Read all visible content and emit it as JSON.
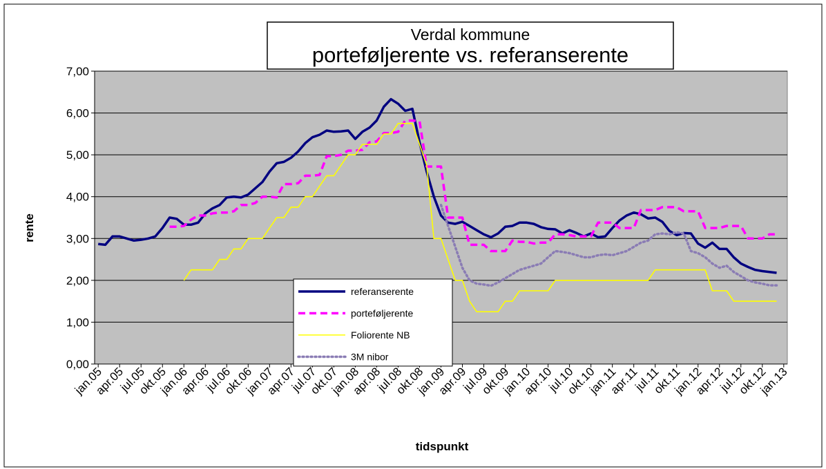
{
  "chart_data": {
    "type": "line",
    "title": "Verdal kommune",
    "subtitle": "porteføljerente vs. referanserente",
    "x_label": "tidspunkt",
    "y_label": "rente",
    "categories": [
      "jan.05",
      null,
      null,
      "apr.05",
      null,
      null,
      "jul.05",
      null,
      null,
      "okt.05",
      null,
      null,
      "jan.06",
      null,
      null,
      "apr.06",
      null,
      null,
      "jul.06",
      null,
      null,
      "okt.06",
      null,
      null,
      "jan.07",
      null,
      null,
      "apr.07",
      null,
      null,
      "jul.07",
      null,
      null,
      "okt.07",
      null,
      null,
      "jan.08",
      null,
      null,
      "apr.08",
      null,
      null,
      "jul.08",
      null,
      null,
      "okt.08",
      null,
      null,
      "jan.09",
      null,
      null,
      "apr.09",
      null,
      null,
      "jul.09",
      null,
      null,
      "okt.09",
      null,
      null,
      "jan.10",
      null,
      null,
      "apr.10",
      null,
      null,
      "jul.10",
      null,
      null,
      "okt.10",
      null,
      null,
      "jan.11",
      null,
      null,
      "apr.11",
      null,
      null,
      "jul.11",
      null,
      null,
      "okt.11",
      null,
      null,
      "jan.12",
      null,
      null,
      "apr.12",
      null,
      null,
      "jul.12",
      null,
      null,
      "okt.12",
      null,
      null,
      "jan.13"
    ],
    "ylim": [
      0,
      7
    ],
    "yticks": [
      {
        "value": 0,
        "label": "0,00"
      },
      {
        "value": 1,
        "label": "1,00"
      },
      {
        "value": 2,
        "label": "2,00"
      },
      {
        "value": 3,
        "label": "3,00"
      },
      {
        "value": 4,
        "label": "4,00"
      },
      {
        "value": 5,
        "label": "5,00"
      },
      {
        "value": 6,
        "label": "6,00"
      },
      {
        "value": 7,
        "label": "7,00"
      }
    ],
    "grid": true,
    "series": [
      {
        "name": "referanserente",
        "color": "#000080",
        "dash": "solid",
        "values": [
          2.87,
          2.85,
          3.05,
          3.05,
          3.0,
          2.95,
          2.97,
          3.0,
          3.05,
          3.25,
          3.5,
          3.47,
          3.33,
          3.33,
          3.38,
          3.6,
          3.72,
          3.8,
          3.98,
          4.0,
          3.98,
          4.05,
          4.2,
          4.35,
          4.6,
          4.8,
          4.83,
          4.93,
          5.08,
          5.28,
          5.42,
          5.48,
          5.58,
          5.55,
          5.56,
          5.58,
          5.38,
          5.55,
          5.65,
          5.82,
          6.15,
          6.33,
          6.22,
          6.05,
          6.1,
          5.3,
          4.6,
          4.0,
          3.55,
          3.38,
          3.35,
          3.4,
          3.3,
          3.2,
          3.1,
          3.03,
          3.12,
          3.28,
          3.3,
          3.38,
          3.38,
          3.35,
          3.27,
          3.23,
          3.22,
          3.12,
          3.2,
          3.13,
          3.05,
          3.12,
          3.03,
          3.05,
          3.25,
          3.43,
          3.55,
          3.62,
          3.58,
          3.48,
          3.5,
          3.4,
          3.18,
          3.08,
          3.13,
          3.12,
          2.88,
          2.78,
          2.9,
          2.75,
          2.75,
          2.55,
          2.4,
          2.32,
          2.25,
          2.22,
          2.2,
          2.18,
          null
        ]
      },
      {
        "name": "porteføljerente",
        "color": "#ff00ff",
        "dash": "dashed",
        "values": [
          null,
          null,
          null,
          null,
          null,
          null,
          null,
          null,
          null,
          null,
          3.28,
          3.28,
          3.3,
          3.45,
          3.55,
          3.55,
          3.6,
          3.62,
          3.62,
          3.65,
          3.8,
          3.8,
          3.85,
          4.0,
          4.0,
          3.98,
          4.3,
          4.3,
          4.32,
          4.5,
          4.5,
          4.52,
          4.97,
          4.97,
          5.0,
          5.1,
          5.1,
          5.12,
          5.3,
          5.32,
          5.52,
          5.52,
          5.55,
          5.82,
          5.82,
          5.8,
          4.72,
          4.72,
          4.72,
          3.5,
          3.5,
          3.5,
          2.85,
          2.85,
          2.85,
          2.7,
          2.7,
          2.7,
          2.95,
          2.92,
          2.92,
          2.88,
          2.9,
          2.9,
          3.1,
          3.1,
          3.08,
          3.05,
          3.05,
          3.05,
          3.38,
          3.38,
          3.38,
          3.25,
          3.25,
          3.25,
          3.68,
          3.68,
          3.68,
          3.75,
          3.75,
          3.75,
          3.65,
          3.65,
          3.65,
          3.25,
          3.25,
          3.25,
          3.3,
          3.3,
          3.3,
          3.0,
          3.0,
          3.0,
          3.1,
          3.1,
          null
        ]
      },
      {
        "name": "Foliorente NB",
        "color": "#ffff00",
        "dash": "solid",
        "values": [
          null,
          null,
          null,
          null,
          null,
          null,
          null,
          null,
          null,
          null,
          null,
          null,
          2.0,
          2.25,
          2.25,
          2.25,
          2.25,
          2.5,
          2.5,
          2.75,
          2.75,
          3.0,
          3.0,
          3.0,
          3.25,
          3.5,
          3.5,
          3.75,
          3.75,
          4.0,
          4.0,
          4.25,
          4.5,
          4.5,
          4.75,
          5.0,
          5.0,
          5.25,
          5.25,
          5.25,
          5.5,
          5.5,
          5.75,
          5.75,
          5.75,
          5.25,
          4.75,
          3.0,
          3.0,
          2.5,
          2.0,
          2.0,
          1.5,
          1.25,
          1.25,
          1.25,
          1.25,
          1.5,
          1.5,
          1.75,
          1.75,
          1.75,
          1.75,
          1.75,
          2.0,
          2.0,
          2.0,
          2.0,
          2.0,
          2.0,
          2.0,
          2.0,
          2.0,
          2.0,
          2.0,
          2.0,
          2.0,
          2.0,
          2.25,
          2.25,
          2.25,
          2.25,
          2.25,
          2.25,
          2.25,
          2.25,
          1.75,
          1.75,
          1.75,
          1.5,
          1.5,
          1.5,
          1.5,
          1.5,
          1.5,
          1.5,
          null
        ]
      },
      {
        "name": "3M nibor",
        "color": "#8a7cb4",
        "dash": "dotted",
        "values": [
          null,
          null,
          null,
          null,
          null,
          null,
          null,
          null,
          null,
          null,
          null,
          null,
          null,
          null,
          null,
          null,
          null,
          null,
          null,
          null,
          null,
          null,
          null,
          null,
          null,
          null,
          null,
          null,
          null,
          null,
          null,
          null,
          null,
          null,
          null,
          null,
          null,
          null,
          null,
          null,
          null,
          null,
          null,
          null,
          null,
          null,
          null,
          null,
          3.8,
          3.3,
          2.8,
          2.3,
          2.0,
          1.92,
          1.9,
          1.87,
          1.95,
          2.05,
          2.15,
          2.25,
          2.3,
          2.35,
          2.4,
          2.55,
          2.7,
          2.68,
          2.65,
          2.6,
          2.55,
          2.55,
          2.6,
          2.62,
          2.6,
          2.65,
          2.7,
          2.8,
          2.9,
          2.95,
          3.1,
          3.12,
          3.1,
          3.15,
          3.12,
          2.7,
          2.65,
          2.55,
          2.4,
          2.3,
          2.35,
          2.2,
          2.1,
          2.0,
          1.95,
          1.92,
          1.88,
          1.88,
          null
        ]
      }
    ]
  }
}
